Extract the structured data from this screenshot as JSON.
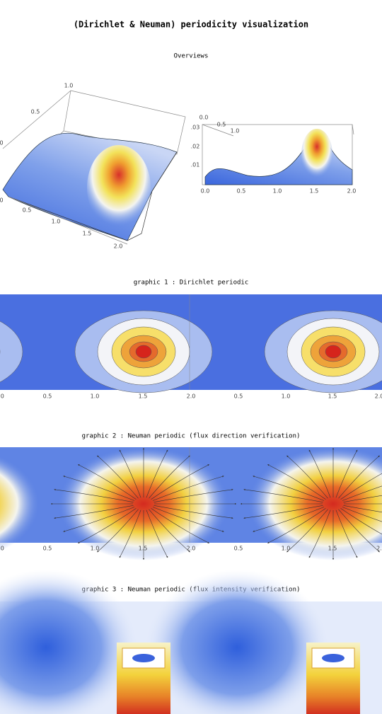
{
  "title": "(Dirichlet & Neuman) periodicity visualization",
  "overviews": {
    "heading": "Overviews",
    "left_plot": {
      "back_axis": [
        "1.0",
        "0.5"
      ],
      "side_axis": [
        "0",
        "0"
      ],
      "front_axis": [
        "0.5",
        "1.0",
        "1.5",
        "2.0"
      ]
    },
    "right_plot": {
      "top_axis": [
        "0.0",
        "0.5",
        "1.0"
      ],
      "left_axis": [
        ".03",
        ".02",
        ".01"
      ],
      "bottom_axis": [
        "0.0",
        "0.5",
        "1.0",
        "1.5",
        "2.0"
      ]
    }
  },
  "graphics": [
    {
      "heading": "graphic 1 : Dirichlet periodic",
      "x_axis": [
        ".0",
        "0.5",
        "1.0",
        "1.5",
        "2.0",
        "0.5",
        "1.0",
        "1.5",
        "2.0"
      ]
    },
    {
      "heading": "graphic 2 : Neuman periodic (flux direction verification)",
      "x_axis": [
        ".0",
        "0.5",
        "1.0",
        "1.5",
        "2.0",
        "0.5",
        "1.0",
        "1.5",
        "2."
      ]
    },
    {
      "heading": "graphic 3 : Neuman periodic (flux intensity verification)"
    }
  ]
}
